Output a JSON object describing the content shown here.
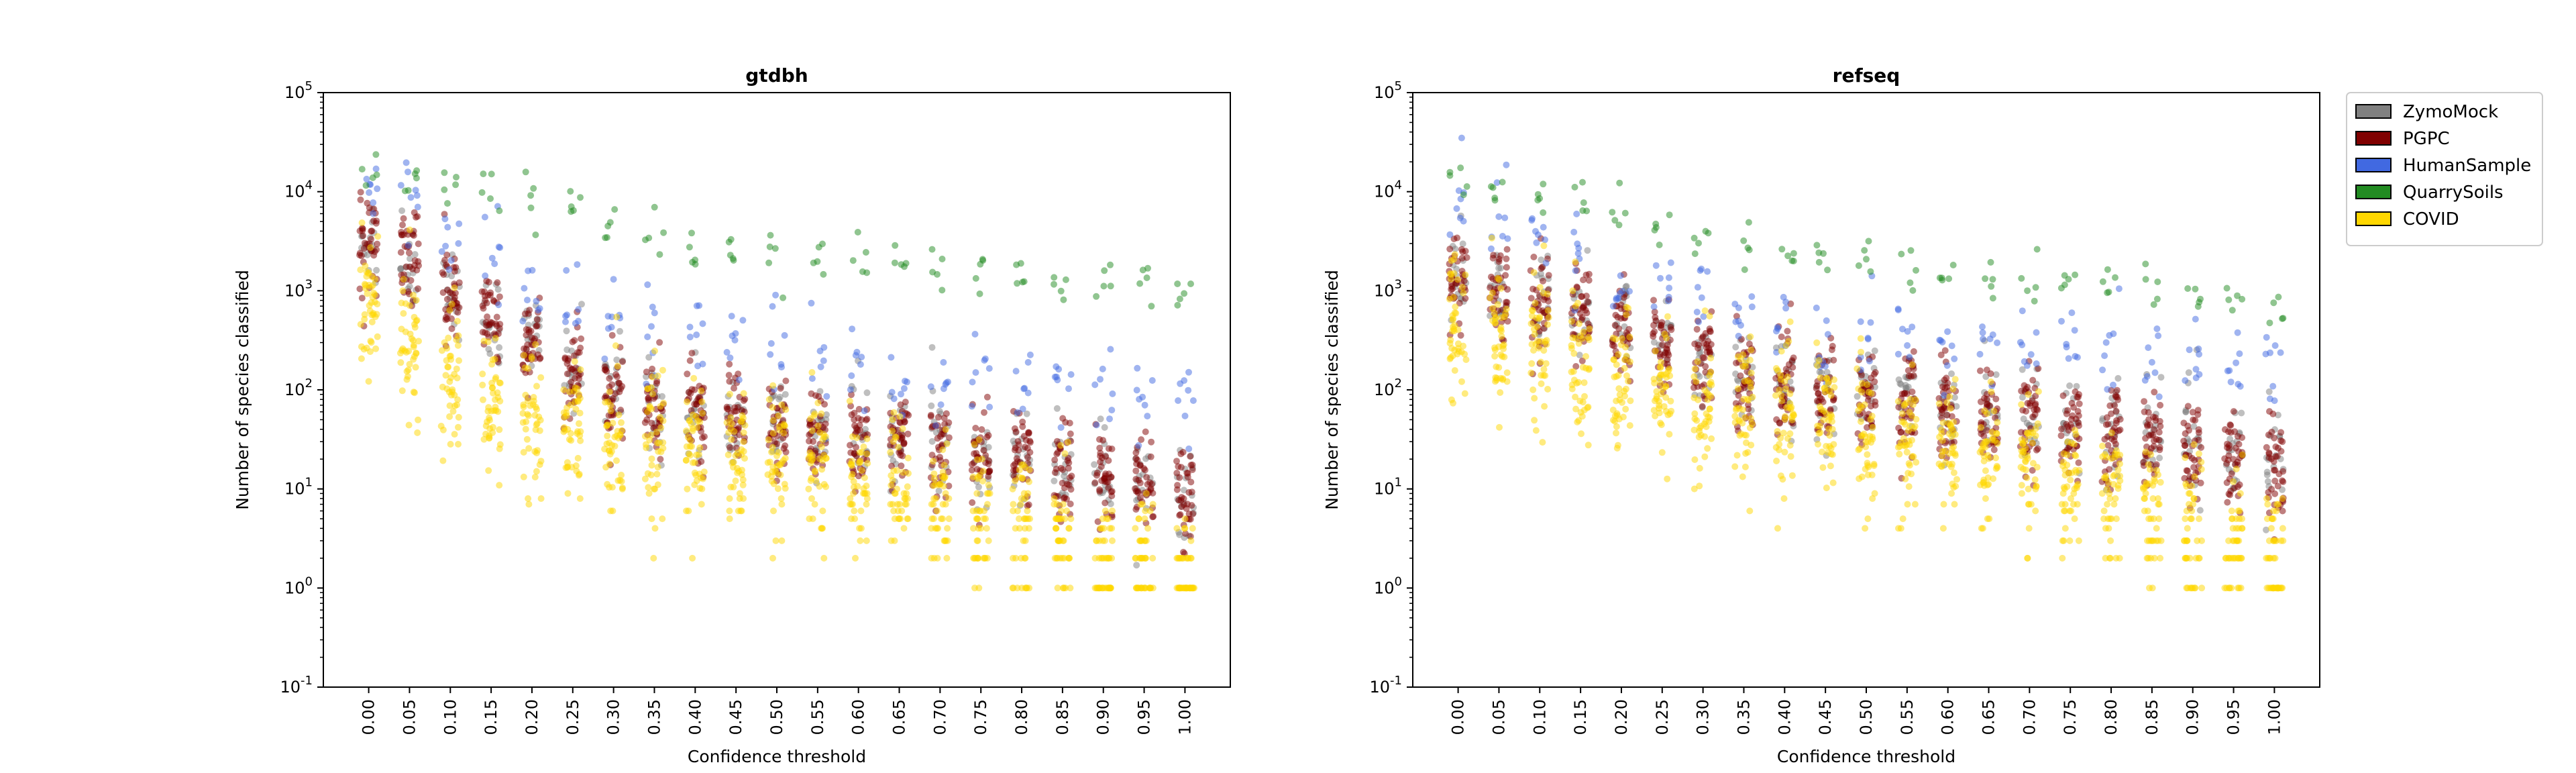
{
  "chart_data": [
    {
      "type": "scatter",
      "title": "gtdbh",
      "xlabel": "Confidence threshold",
      "ylabel": "Number of species classified",
      "yscale": "log",
      "ylim": [
        0.1,
        100000
      ],
      "x": [
        "0.00",
        "0.05",
        "0.10",
        "0.15",
        "0.20",
        "0.25",
        "0.30",
        "0.35",
        "0.40",
        "0.45",
        "0.50",
        "0.55",
        "0.60",
        "0.65",
        "0.70",
        "0.75",
        "0.80",
        "0.85",
        "0.90",
        "0.95",
        "1.00"
      ],
      "yticks": [
        "10^-1",
        "10^0",
        "10^1",
        "10^2",
        "10^3",
        "10^4",
        "10^5"
      ],
      "grid": false,
      "jitter": "strip plot with horizontal jitter",
      "series": [
        {
          "name": "ZymoMock",
          "color": "#808080",
          "values": [
            3000,
            2000,
            1000,
            500,
            300,
            160,
            100,
            70,
            55,
            50,
            45,
            40,
            35,
            32,
            30,
            25,
            22,
            20,
            16,
            12,
            10
          ]
        },
        {
          "name": "PGPC",
          "color": "#800000",
          "values": [
            3000,
            2000,
            900,
            500,
            250,
            150,
            90,
            65,
            50,
            45,
            40,
            35,
            32,
            28,
            25,
            22,
            20,
            17,
            14,
            11,
            9
          ]
        },
        {
          "name": "HumanSample",
          "color": "#4169e1",
          "values": [
            10000,
            6000,
            3500,
            2000,
            1200,
            800,
            500,
            350,
            280,
            230,
            200,
            180,
            160,
            150,
            140,
            130,
            120,
            110,
            100,
            90,
            80
          ]
        },
        {
          "name": "QuarrySoils",
          "color": "#228b22",
          "values": [
            17000,
            15000,
            12000,
            10000,
            8000,
            6500,
            4500,
            3500,
            3000,
            2600,
            2400,
            2100,
            1900,
            1800,
            1650,
            1500,
            1400,
            1300,
            1150,
            1050,
            900
          ]
        },
        {
          "name": "COVID",
          "color": "#ffd700",
          "values": [
            700,
            300,
            120,
            80,
            60,
            50,
            35,
            30,
            25,
            20,
            18,
            15,
            12,
            10,
            8,
            6,
            4,
            3,
            2,
            2,
            1
          ]
        }
      ]
    },
    {
      "type": "scatter",
      "title": "refseq",
      "xlabel": "Confidence threshold",
      "ylabel": "Number of species classified",
      "yscale": "log",
      "ylim": [
        0.1,
        100000
      ],
      "x": [
        "0.00",
        "0.05",
        "0.10",
        "0.15",
        "0.20",
        "0.25",
        "0.30",
        "0.35",
        "0.40",
        "0.45",
        "0.50",
        "0.55",
        "0.60",
        "0.65",
        "0.70",
        "0.75",
        "0.80",
        "0.85",
        "0.90",
        "0.95",
        "1.00"
      ],
      "yticks": [
        "10^-1",
        "10^0",
        "10^1",
        "10^2",
        "10^3",
        "10^4",
        "10^5"
      ],
      "grid": false,
      "jitter": "strip plot with horizontal jitter",
      "series": [
        {
          "name": "ZymoMock",
          "color": "#808080",
          "values": [
            1300,
            1000,
            800,
            600,
            450,
            320,
            200,
            150,
            120,
            100,
            90,
            80,
            70,
            65,
            55,
            45,
            40,
            35,
            28,
            22,
            18
          ]
        },
        {
          "name": "PGPC",
          "color": "#800000",
          "values": [
            1200,
            1000,
            800,
            600,
            450,
            300,
            200,
            140,
            110,
            95,
            85,
            75,
            65,
            55,
            48,
            42,
            36,
            30,
            25,
            20,
            16
          ]
        },
        {
          "name": "HumanSample",
          "color": "#4169e1",
          "values": [
            7000,
            5000,
            3500,
            2200,
            1500,
            1100,
            800,
            600,
            500,
            420,
            380,
            340,
            300,
            280,
            260,
            240,
            220,
            200,
            180,
            160,
            140
          ]
        },
        {
          "name": "QuarrySoils",
          "color": "#228b22",
          "values": [
            13000,
            12000,
            10000,
            8000,
            6000,
            5000,
            3500,
            2800,
            2500,
            2200,
            2000,
            1800,
            1600,
            1500,
            1400,
            1300,
            1200,
            1100,
            950,
            850,
            700
          ]
        },
        {
          "name": "COVID",
          "color": "#ffd700",
          "values": [
            500,
            380,
            250,
            150,
            110,
            90,
            70,
            60,
            50,
            40,
            35,
            30,
            25,
            20,
            15,
            10,
            8,
            6,
            4,
            3,
            2
          ]
        }
      ]
    }
  ],
  "legend": {
    "placement": "outside-right",
    "items": [
      {
        "label": "ZymoMock",
        "color": "#808080"
      },
      {
        "label": "PGPC",
        "color": "#800000"
      },
      {
        "label": "HumanSample",
        "color": "#4169e1"
      },
      {
        "label": "QuarrySoils",
        "color": "#228b22"
      },
      {
        "label": "COVID",
        "color": "#ffd700"
      }
    ]
  }
}
